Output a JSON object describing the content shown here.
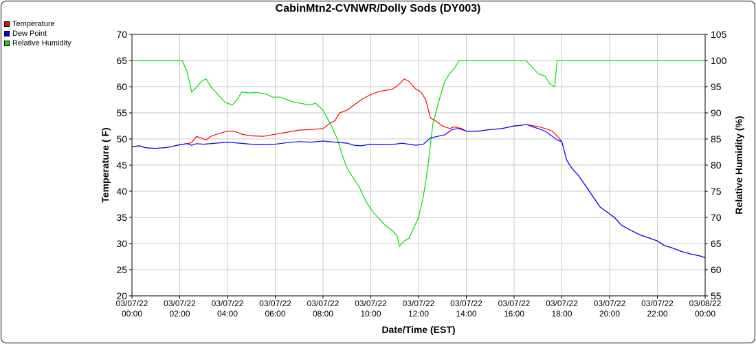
{
  "chart_data": {
    "type": "line",
    "title": "CabinMtn2-CVNWR/Dolly Sods (DY003)",
    "xlabel": "Date/Time (EST)",
    "ylabel": "Temperature ( F)",
    "y2label": "Relative Humidity (%)",
    "ylim": [
      20,
      70
    ],
    "y2lim": [
      55,
      105
    ],
    "yticks": [
      20,
      25,
      30,
      35,
      40,
      45,
      50,
      55,
      60,
      65,
      70
    ],
    "y2ticks": [
      55,
      60,
      65,
      70,
      75,
      80,
      85,
      90,
      95,
      100,
      105
    ],
    "xlim": [
      0,
      24
    ],
    "xticks": [
      {
        "hour": 0,
        "date": "03/07/22",
        "time": "00:00"
      },
      {
        "hour": 2,
        "date": "03/07/22",
        "time": "02:00"
      },
      {
        "hour": 4,
        "date": "03/07/22",
        "time": "04:00"
      },
      {
        "hour": 6,
        "date": "03/07/22",
        "time": "06:00"
      },
      {
        "hour": 8,
        "date": "03/07/22",
        "time": "08:00"
      },
      {
        "hour": 10,
        "date": "03/07/22",
        "time": "10:00"
      },
      {
        "hour": 12,
        "date": "03/07/22",
        "time": "12:00"
      },
      {
        "hour": 14,
        "date": "03/07/22",
        "time": "14:00"
      },
      {
        "hour": 16,
        "date": "03/07/22",
        "time": "16:00"
      },
      {
        "hour": 18,
        "date": "03/07/22",
        "time": "18:00"
      },
      {
        "hour": 20,
        "date": "03/07/22",
        "time": "20:00"
      },
      {
        "hour": 22,
        "date": "03/07/22",
        "time": "22:00"
      },
      {
        "hour": 24,
        "date": "03/08/22",
        "time": "00:00"
      }
    ],
    "grid": true,
    "legend_position": "top-left",
    "series": [
      {
        "name": "Temperature",
        "color": "#ff0000",
        "axis": "left",
        "points": [
          [
            0,
            48.5
          ],
          [
            0.3,
            48.7
          ],
          [
            0.6,
            48.3
          ],
          [
            1,
            48.2
          ],
          [
            1.5,
            48.4
          ],
          [
            2,
            48.9
          ],
          [
            2.3,
            49.1
          ],
          [
            2.5,
            49.3
          ],
          [
            2.7,
            50.5
          ],
          [
            2.9,
            50.2
          ],
          [
            3.1,
            49.8
          ],
          [
            3.3,
            50.5
          ],
          [
            3.6,
            51
          ],
          [
            4,
            51.5
          ],
          [
            4.3,
            51.5
          ],
          [
            4.6,
            50.9
          ],
          [
            5,
            50.6
          ],
          [
            5.5,
            50.5
          ],
          [
            6,
            50.9
          ],
          [
            6.5,
            51.3
          ],
          [
            7,
            51.7
          ],
          [
            7.5,
            51.8
          ],
          [
            8,
            52
          ],
          [
            8.3,
            53
          ],
          [
            8.5,
            53.5
          ],
          [
            8.7,
            55
          ],
          [
            9,
            55.5
          ],
          [
            9.3,
            56.5
          ],
          [
            9.6,
            57.5
          ],
          [
            10,
            58.5
          ],
          [
            10.3,
            59
          ],
          [
            10.6,
            59.3
          ],
          [
            10.9,
            59.5
          ],
          [
            11.2,
            60.5
          ],
          [
            11.4,
            61.5
          ],
          [
            11.6,
            61
          ],
          [
            11.9,
            59.5
          ],
          [
            12.1,
            59
          ],
          [
            12.3,
            57.5
          ],
          [
            12.5,
            54
          ],
          [
            12.7,
            53.5
          ],
          [
            13,
            52.5
          ],
          [
            13.3,
            52
          ],
          [
            13.5,
            52.3
          ],
          [
            13.8,
            52
          ],
          [
            14,
            51.5
          ],
          [
            14.5,
            51.5
          ],
          [
            15,
            51.8
          ],
          [
            15.5,
            52
          ],
          [
            16,
            52.5
          ],
          [
            16.3,
            52.6
          ],
          [
            16.5,
            52.8
          ],
          [
            16.7,
            52.6
          ],
          [
            17,
            52.4
          ],
          [
            17.3,
            52
          ],
          [
            17.6,
            51.5
          ],
          [
            17.8,
            50.6
          ],
          [
            18,
            49.5
          ],
          [
            18.2,
            46
          ],
          [
            18.4,
            44.5
          ],
          [
            18.7,
            43
          ],
          [
            19,
            41
          ],
          [
            19.3,
            39
          ],
          [
            19.6,
            37
          ],
          [
            19.9,
            36
          ],
          [
            20.2,
            35
          ],
          [
            20.5,
            33.5
          ],
          [
            20.9,
            32.5
          ],
          [
            21.3,
            31.6
          ],
          [
            21.7,
            31
          ],
          [
            22,
            30.5
          ],
          [
            22.3,
            29.6
          ],
          [
            22.6,
            29.2
          ],
          [
            23,
            28.5
          ],
          [
            23.4,
            28
          ],
          [
            23.8,
            27.6
          ],
          [
            24,
            27.3
          ]
        ]
      },
      {
        "name": "Dew Point",
        "color": "#0000ff",
        "axis": "left",
        "points": [
          [
            0,
            48.5
          ],
          [
            0.3,
            48.7
          ],
          [
            0.6,
            48.3
          ],
          [
            1,
            48.2
          ],
          [
            1.5,
            48.4
          ],
          [
            2,
            48.9
          ],
          [
            2.3,
            49.1
          ],
          [
            2.5,
            48.8
          ],
          [
            2.7,
            49.1
          ],
          [
            3,
            49
          ],
          [
            3.5,
            49.2
          ],
          [
            4,
            49.4
          ],
          [
            4.5,
            49.2
          ],
          [
            5,
            49
          ],
          [
            5.5,
            48.9
          ],
          [
            6,
            49
          ],
          [
            6.5,
            49.3
          ],
          [
            7,
            49.5
          ],
          [
            7.5,
            49.4
          ],
          [
            8,
            49.6
          ],
          [
            8.5,
            49.4
          ],
          [
            9,
            49.2
          ],
          [
            9.3,
            48.8
          ],
          [
            9.6,
            48.7
          ],
          [
            10,
            49
          ],
          [
            10.5,
            48.9
          ],
          [
            11,
            49
          ],
          [
            11.3,
            49.2
          ],
          [
            11.6,
            49
          ],
          [
            11.9,
            48.8
          ],
          [
            12.2,
            49
          ],
          [
            12.5,
            50.2
          ],
          [
            12.8,
            50.5
          ],
          [
            13.1,
            50.8
          ],
          [
            13.4,
            51.8
          ],
          [
            13.7,
            52
          ],
          [
            14,
            51.5
          ],
          [
            14.5,
            51.5
          ],
          [
            15,
            51.8
          ],
          [
            15.5,
            52
          ],
          [
            16,
            52.5
          ],
          [
            16.3,
            52.6
          ],
          [
            16.5,
            52.8
          ],
          [
            16.8,
            52.3
          ],
          [
            17,
            52
          ],
          [
            17.3,
            51.5
          ],
          [
            17.6,
            50.5
          ],
          [
            17.8,
            49.8
          ],
          [
            18,
            49.5
          ],
          [
            18.2,
            46
          ],
          [
            18.4,
            44.5
          ],
          [
            18.7,
            43
          ],
          [
            19,
            41
          ],
          [
            19.3,
            39
          ],
          [
            19.6,
            37
          ],
          [
            19.9,
            36
          ],
          [
            20.2,
            35
          ],
          [
            20.5,
            33.5
          ],
          [
            20.9,
            32.5
          ],
          [
            21.3,
            31.6
          ],
          [
            21.7,
            31
          ],
          [
            22,
            30.5
          ],
          [
            22.3,
            29.6
          ],
          [
            22.6,
            29.2
          ],
          [
            23,
            28.5
          ],
          [
            23.4,
            28
          ],
          [
            23.8,
            27.6
          ],
          [
            24,
            27.3
          ]
        ]
      },
      {
        "name": "Relative Humidity",
        "color": "#00e000",
        "axis": "right",
        "points": [
          [
            0,
            100
          ],
          [
            2.1,
            100
          ],
          [
            2.3,
            98
          ],
          [
            2.5,
            94
          ],
          [
            2.7,
            94.8
          ],
          [
            2.9,
            96
          ],
          [
            3.1,
            96.5
          ],
          [
            3.3,
            95
          ],
          [
            3.6,
            93.5
          ],
          [
            3.9,
            92
          ],
          [
            4.2,
            91.5
          ],
          [
            4.4,
            92.5
          ],
          [
            4.6,
            94
          ],
          [
            4.9,
            93.8
          ],
          [
            5.2,
            93.9
          ],
          [
            5.6,
            93.6
          ],
          [
            5.9,
            93
          ],
          [
            6.2,
            93
          ],
          [
            6.5,
            92.5
          ],
          [
            6.8,
            92
          ],
          [
            7.1,
            91.8
          ],
          [
            7.4,
            91.5
          ],
          [
            7.7,
            91.8
          ],
          [
            8,
            90.5
          ],
          [
            8.3,
            88
          ],
          [
            8.5,
            86
          ],
          [
            8.6,
            85
          ],
          [
            8.8,
            82
          ],
          [
            9,
            79.5
          ],
          [
            9.2,
            78
          ],
          [
            9.5,
            76
          ],
          [
            9.8,
            73
          ],
          [
            10.1,
            71
          ],
          [
            10.3,
            70
          ],
          [
            10.6,
            68.5
          ],
          [
            10.9,
            67.5
          ],
          [
            11.1,
            66.5
          ],
          [
            11.2,
            64.5
          ],
          [
            11.4,
            65.5
          ],
          [
            11.6,
            66
          ],
          [
            11.8,
            68
          ],
          [
            12,
            70
          ],
          [
            12.2,
            74
          ],
          [
            12.4,
            80
          ],
          [
            12.6,
            88
          ],
          [
            12.9,
            93
          ],
          [
            13.1,
            96
          ],
          [
            13.3,
            97.5
          ],
          [
            13.5,
            98.5
          ],
          [
            13.7,
            100
          ],
          [
            16.5,
            100
          ],
          [
            16.7,
            99
          ],
          [
            17,
            97.5
          ],
          [
            17.3,
            97
          ],
          [
            17.5,
            95.5
          ],
          [
            17.7,
            95
          ],
          [
            17.8,
            100
          ],
          [
            24,
            100
          ]
        ]
      }
    ]
  }
}
